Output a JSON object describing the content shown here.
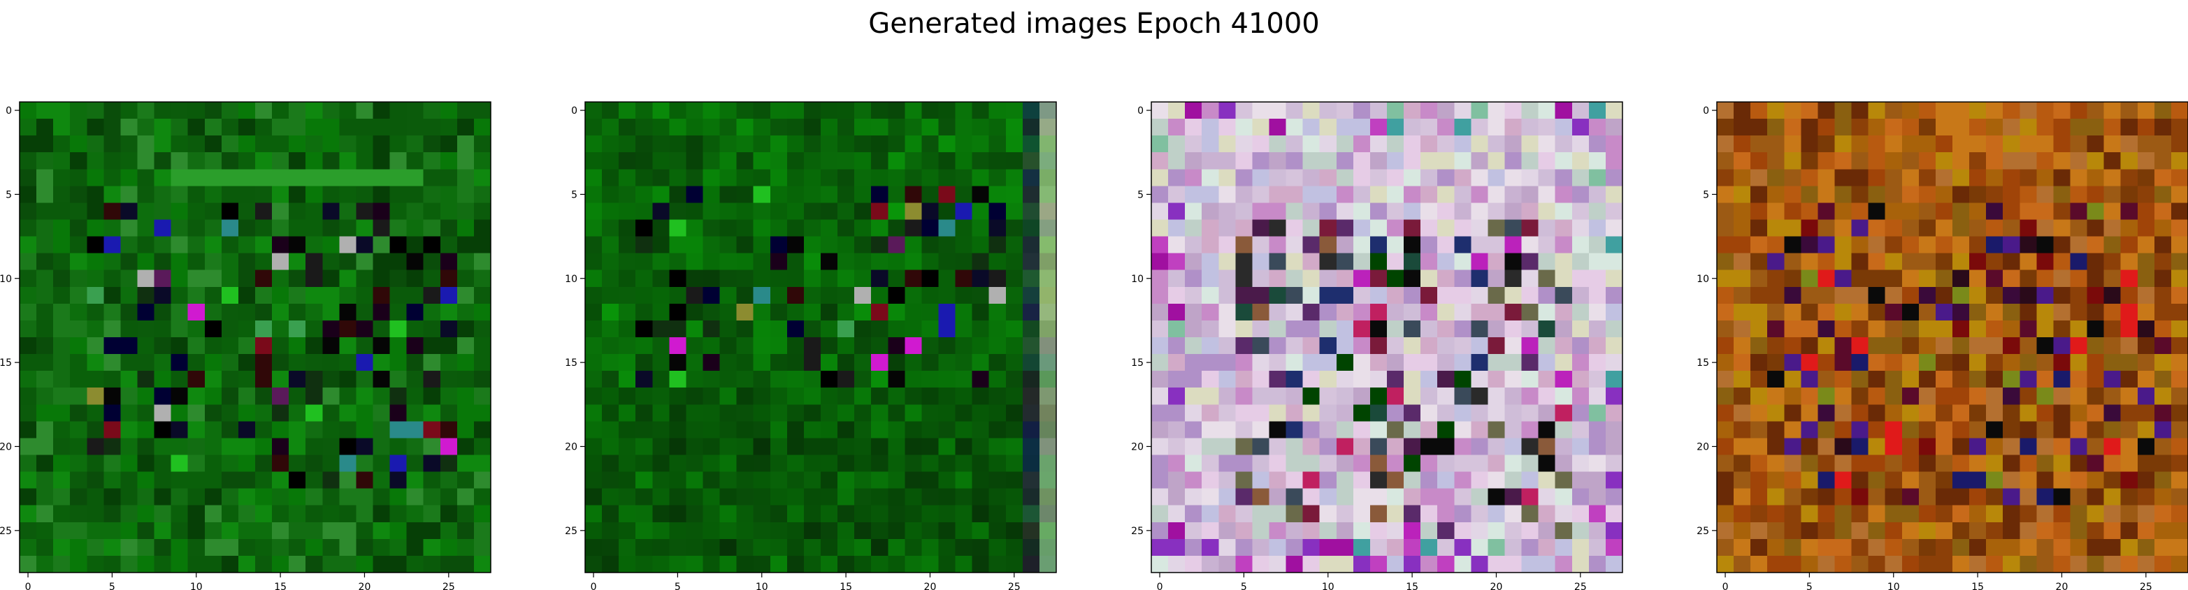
{
  "title": "Generated images Epoch 41000",
  "chart_data": [
    {
      "type": "heatmap",
      "palette": "green",
      "xlim": [
        -0.5,
        27.5
      ],
      "ylim": [
        27.5,
        -0.5
      ],
      "xticks": [
        0,
        5,
        10,
        15,
        20,
        25
      ],
      "yticks": [
        0,
        5,
        10,
        15,
        20,
        25
      ],
      "grid": false
    },
    {
      "type": "heatmap",
      "palette": "green-dark",
      "xlim": [
        -0.5,
        27.5
      ],
      "ylim": [
        27.5,
        -0.5
      ],
      "xticks": [
        0,
        5,
        10,
        15,
        20,
        25
      ],
      "yticks": [
        0,
        5,
        10,
        15,
        20,
        25
      ],
      "grid": false
    },
    {
      "type": "heatmap",
      "palette": "pastel",
      "xlim": [
        -0.5,
        27.5
      ],
      "ylim": [
        27.5,
        -0.5
      ],
      "xticks": [
        0,
        5,
        10,
        15,
        20,
        25
      ],
      "yticks": [
        0,
        5,
        10,
        15,
        20,
        25
      ],
      "grid": false
    },
    {
      "type": "heatmap",
      "palette": "autumn",
      "xlim": [
        -0.5,
        27.5
      ],
      "ylim": [
        27.5,
        -0.5
      ],
      "xticks": [
        0,
        5,
        10,
        15,
        20,
        25
      ],
      "yticks": [
        0,
        5,
        10,
        15,
        20,
        25
      ],
      "grid": false
    }
  ]
}
